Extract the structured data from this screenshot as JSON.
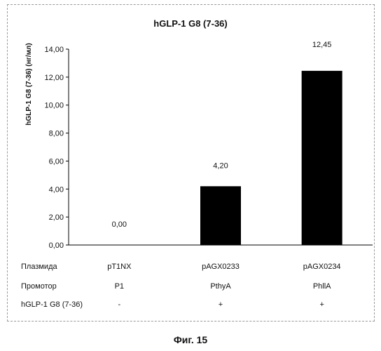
{
  "chart_data": {
    "type": "bar",
    "title": "hGLP-1 G8 (7-36)",
    "ylabel": "hGLP-1 G8 (7-36) (нг/мл)",
    "xlabel": "",
    "ylim": [
      0,
      14
    ],
    "yticks": [
      "0,00",
      "2,00",
      "4,00",
      "6,00",
      "8,00",
      "10,00",
      "12,00",
      "14,00"
    ],
    "ytick_values": [
      0,
      2,
      4,
      6,
      8,
      10,
      12,
      14
    ],
    "categories": [
      "pT1NX",
      "pAGX0233",
      "pAGX0234"
    ],
    "values": [
      0.0,
      4.2,
      12.45
    ],
    "data_labels": [
      "0,00",
      "4,20",
      "12,45"
    ],
    "bar_color": "#000000",
    "grid": false,
    "legend": "none"
  },
  "table": {
    "rows": [
      {
        "label": "Плазмида",
        "cells": [
          "pT1NX",
          "pAGX0233",
          "pAGX0234"
        ]
      },
      {
        "label": "Промотор",
        "cells": [
          "P1",
          "PthyA",
          "PhllA"
        ]
      },
      {
        "label": "hGLP-1 G8 (7-36)",
        "cells": [
          "-",
          "+",
          "+"
        ]
      }
    ]
  },
  "caption": "Фиг. 15"
}
